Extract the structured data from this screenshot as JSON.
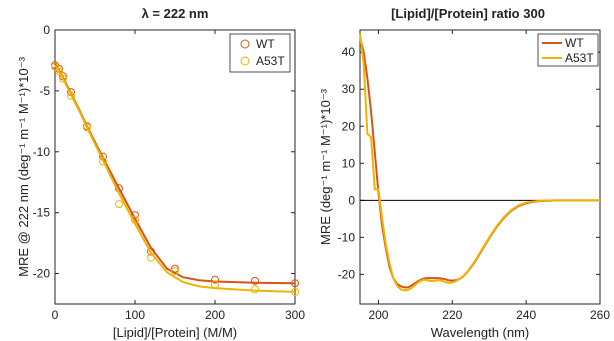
{
  "chart_data": [
    {
      "type": "line",
      "title": "λ = 222 nm",
      "xlabel": "[Lipid]/[Protein] (M/M)",
      "ylabel": "MRE @ 222 nm (deg⁻¹ m⁻¹ M⁻¹)*10⁻³",
      "xlim": [
        0,
        300
      ],
      "ylim": [
        -22.5,
        0
      ],
      "xticks": [
        0,
        100,
        200,
        300
      ],
      "yticks": [
        0,
        -5,
        -10,
        -15,
        -20
      ],
      "grid": false,
      "legend_position": "top-right",
      "series": [
        {
          "name": "WT",
          "color": "#d95319",
          "points": {
            "x": [
              0,
              5,
              10,
              20,
              40,
              60,
              80,
              100,
              120,
              150,
              200,
              250,
              300
            ],
            "y": [
              -2.9,
              -3.2,
              -3.8,
              -5.1,
              -7.9,
              -10.4,
              -13.0,
              -15.2,
              -18.2,
              -19.6,
              -20.5,
              -20.6,
              -20.8
            ]
          },
          "fit": {
            "x": [
              0,
              5,
              10,
              20,
              30,
              40,
              60,
              80,
              100,
              120,
              140,
              160,
              180,
              200,
              250,
              300
            ],
            "y": [
              -2.8,
              -3.3,
              -3.9,
              -5.2,
              -6.5,
              -7.9,
              -10.5,
              -13.0,
              -15.5,
              -17.9,
              -19.6,
              -20.3,
              -20.55,
              -20.65,
              -20.75,
              -20.8
            ]
          }
        },
        {
          "name": "A53T",
          "color": "#f0b400",
          "points": {
            "x": [
              0,
              5,
              10,
              20,
              40,
              60,
              80,
              100,
              120,
              150,
              200,
              250,
              300
            ],
            "y": [
              -3.0,
              -3.4,
              -4.0,
              -5.4,
              -8.0,
              -10.8,
              -14.3,
              -15.6,
              -18.7,
              -19.8,
              -20.9,
              -21.3,
              -21.5
            ]
          },
          "fit": {
            "x": [
              0,
              5,
              10,
              20,
              30,
              40,
              60,
              80,
              100,
              120,
              140,
              160,
              180,
              200,
              250,
              300
            ],
            "y": [
              -2.9,
              -3.4,
              -4.0,
              -5.3,
              -6.6,
              -8.0,
              -10.7,
              -13.4,
              -15.9,
              -18.3,
              -19.9,
              -20.7,
              -21.05,
              -21.2,
              -21.4,
              -21.5
            ]
          }
        }
      ]
    },
    {
      "type": "line",
      "title": "[Lipid]/[Protein] ratio 300",
      "xlabel": "Wavelength (nm)",
      "ylabel": "MRE (deg⁻¹ m⁻¹ M⁻¹)*10⁻³",
      "xlim": [
        195,
        260
      ],
      "ylim": [
        -28,
        46
      ],
      "xticks": [
        200,
        220,
        240,
        260
      ],
      "yticks": [
        -20,
        -10,
        0,
        10,
        20,
        30,
        40
      ],
      "zero_line": true,
      "grid": false,
      "legend_position": "top-right",
      "series": [
        {
          "name": "WT",
          "color": "#d95319",
          "x": [
            195,
            196,
            197,
            198,
            199,
            200,
            201,
            202,
            203,
            204,
            205,
            206,
            207,
            208,
            209,
            210,
            211,
            212,
            213,
            214,
            215,
            216,
            217,
            218,
            219,
            220,
            221,
            222,
            223,
            224,
            226,
            228,
            230,
            232,
            234,
            236,
            238,
            240,
            242,
            244,
            246,
            248,
            250,
            255,
            260
          ],
          "y": [
            44,
            40,
            33,
            24,
            13,
            2,
            -7,
            -13,
            -18,
            -21,
            -22.5,
            -23.2,
            -23.5,
            -23.5,
            -23.0,
            -22.3,
            -21.7,
            -21.2,
            -21.0,
            -21.0,
            -21.0,
            -21.0,
            -21.1,
            -21.3,
            -21.6,
            -21.7,
            -21.6,
            -21.2,
            -20.5,
            -19.5,
            -16.8,
            -13.5,
            -10.2,
            -7.2,
            -4.7,
            -2.8,
            -1.5,
            -0.8,
            -0.4,
            -0.2,
            -0.1,
            0,
            0,
            0,
            0
          ]
        },
        {
          "name": "A53T",
          "color": "#f0b400",
          "x": [
            195,
            196,
            197,
            198,
            199,
            200,
            201,
            202,
            203,
            204,
            205,
            206,
            207,
            208,
            209,
            210,
            211,
            212,
            213,
            214,
            215,
            216,
            217,
            218,
            219,
            220,
            221,
            222,
            223,
            224,
            226,
            228,
            230,
            232,
            234,
            236,
            238,
            240,
            242,
            244,
            246,
            248,
            250,
            255,
            260
          ],
          "y": [
            45,
            37,
            18,
            17,
            3,
            3,
            -5,
            -12,
            -17,
            -21,
            -23,
            -24,
            -24.3,
            -24.2,
            -23.7,
            -22.8,
            -22,
            -21.5,
            -21.5,
            -21.8,
            -21.8,
            -21.6,
            -21.7,
            -22,
            -22.3,
            -22.2,
            -21.8,
            -21.2,
            -20.4,
            -19.4,
            -16.6,
            -13.3,
            -10,
            -7,
            -4.5,
            -2.6,
            -1.3,
            -0.6,
            -0.3,
            -0.1,
            0,
            0,
            0,
            0,
            0
          ]
        }
      ]
    }
  ]
}
